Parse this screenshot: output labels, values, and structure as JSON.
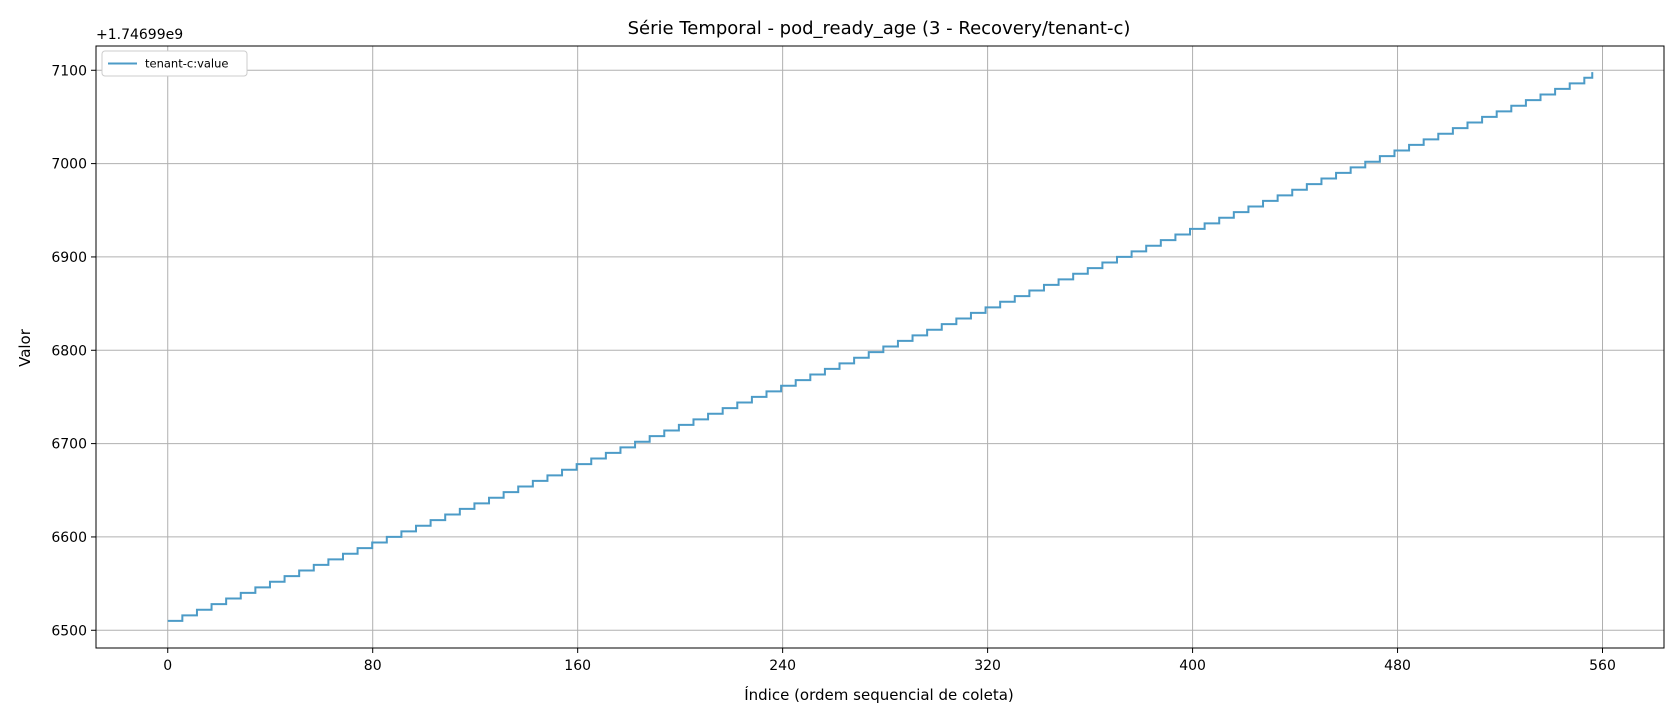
{
  "chart_data": {
    "type": "line",
    "title": "Série Temporal - pod_ready_age (3 - Recovery/tenant-c)",
    "xlabel": "Índice (ordem sequencial de coleta)",
    "ylabel": "Valor",
    "y_offset_label": "+1.74699e9",
    "xlim": [
      -28,
      584
    ],
    "ylim": [
      6481,
      7126
    ],
    "x_ticks": [
      0,
      80,
      160,
      240,
      320,
      400,
      480,
      560
    ],
    "y_ticks": [
      6500,
      6600,
      6700,
      6800,
      6900,
      7000,
      7100
    ],
    "grid": true,
    "legend_position": "top-left",
    "series": [
      {
        "name": "tenant-c:value",
        "color": "#4c9bc7",
        "x_start": 0,
        "x_end": 556,
        "y_start": 6510,
        "y_end": 7097,
        "step_every": 5.7,
        "step_size": 6
      }
    ]
  }
}
